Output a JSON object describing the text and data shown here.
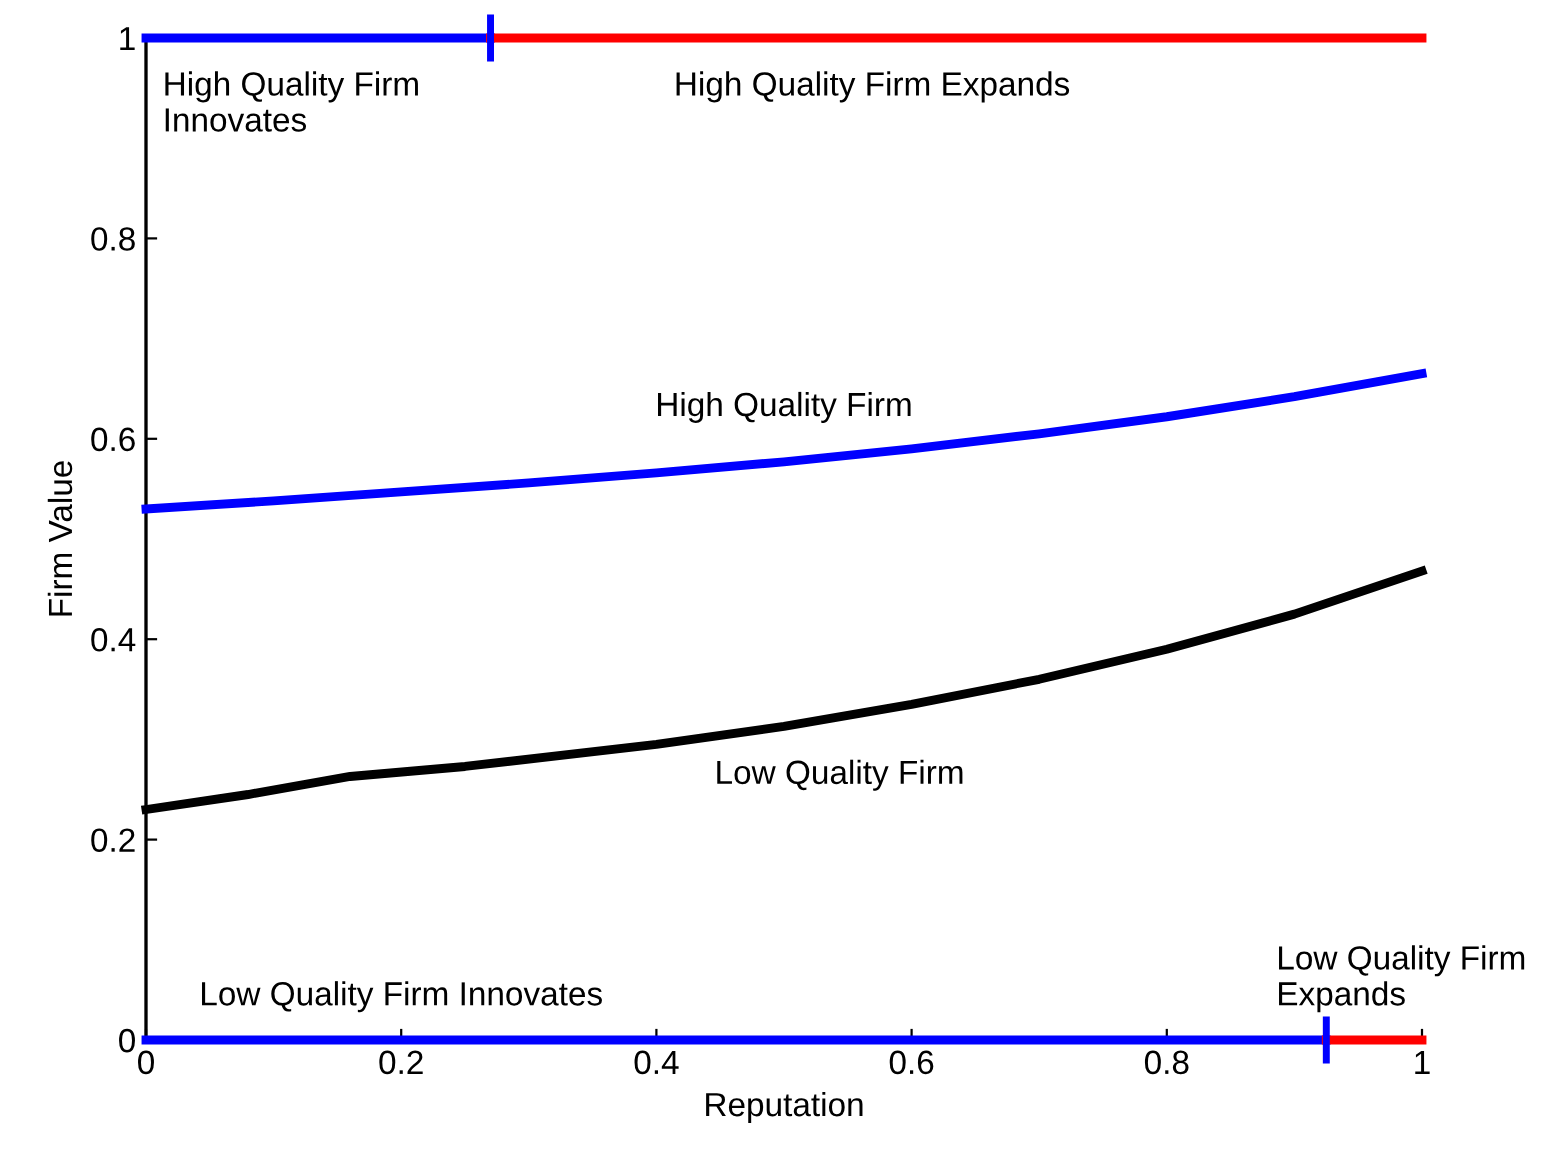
{
  "chart_data": {
    "type": "line",
    "xlabel": "Reputation",
    "ylabel": "Firm Value",
    "xlim": [
      0,
      1
    ],
    "ylim": [
      0,
      1
    ],
    "xticks": [
      0,
      0.2,
      0.4,
      0.6,
      0.8,
      1
    ],
    "yticks": [
      0,
      0.2,
      0.4,
      0.6,
      0.8,
      1
    ],
    "grid": false,
    "legend": false,
    "series": [
      {
        "name": "High Quality Firm\nInnovates",
        "color": "#0000ff",
        "x": [
          0,
          0.27
        ],
        "values": [
          1,
          1
        ]
      },
      {
        "name": "High Quality Firm Expands",
        "color": "#ff0000",
        "x": [
          0.27,
          1
        ],
        "values": [
          1,
          1
        ]
      },
      {
        "name": "High Quality Firm",
        "color": "#0000ff",
        "x": [
          0,
          0.1,
          0.2,
          0.3,
          0.4,
          0.5,
          0.6,
          0.7,
          0.8,
          0.9,
          1
        ],
        "values": [
          0.53,
          0.538,
          0.547,
          0.556,
          0.566,
          0.577,
          0.59,
          0.605,
          0.622,
          0.642,
          0.665
        ]
      },
      {
        "name": "Low Quality Firm",
        "color": "#000000",
        "x": [
          0,
          0.08,
          0.16,
          0.25,
          0.4,
          0.5,
          0.6,
          0.7,
          0.8,
          0.9,
          1
        ],
        "values": [
          0.23,
          0.245,
          0.263,
          0.273,
          0.295,
          0.313,
          0.335,
          0.36,
          0.39,
          0.425,
          0.468
        ]
      },
      {
        "name": "Low Quality Firm Innovates",
        "color": "#0000ff",
        "x": [
          0,
          0.925
        ],
        "values": [
          0,
          0
        ]
      },
      {
        "name": "Low Quality Firm\nExpands",
        "color": "#ff0000",
        "x": [
          0.925,
          1
        ],
        "values": [
          0,
          0
        ]
      }
    ]
  }
}
